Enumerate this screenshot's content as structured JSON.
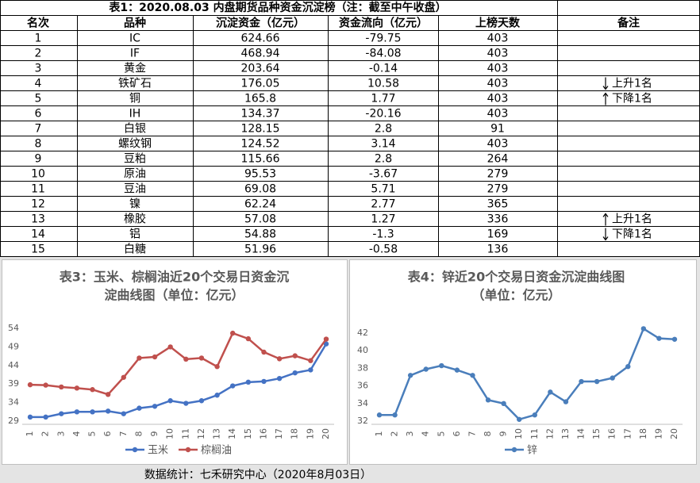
{
  "table": {
    "title": "表1：2020.08.03 内盘期货品种资金沉淀榜（注：截至中午收盘）",
    "columns": [
      "名次",
      "品种",
      "沉淀资金（亿元）",
      "资金流向（亿元）",
      "上榜天数",
      "备注"
    ],
    "rows": [
      [
        "1",
        "IC",
        "624.66",
        "-79.75",
        "403",
        null
      ],
      [
        "2",
        "IF",
        "468.94",
        "-84.08",
        "403",
        null
      ],
      [
        "3",
        "黄金",
        "203.64",
        "-0.14",
        "403",
        null
      ],
      [
        "4",
        "铁矿石",
        "176.05",
        "10.58",
        "403",
        "上升1名"
      ],
      [
        "5",
        "铜",
        "165.8",
        "1.77",
        "403",
        "下降1名"
      ],
      [
        "6",
        "IH",
        "134.37",
        "-20.16",
        "403",
        null
      ],
      [
        "7",
        "白银",
        "128.15",
        "2.8",
        "91",
        null
      ],
      [
        "8",
        "螺纹钢",
        "124.52",
        "3.14",
        "403",
        null
      ],
      [
        "9",
        "豆粕",
        "115.66",
        "2.8",
        "264",
        null
      ],
      [
        "10",
        "原油",
        "95.53",
        "-3.67",
        "279",
        null
      ],
      [
        "11",
        "豆油",
        "69.08",
        "5.71",
        "279",
        null
      ],
      [
        "12",
        "镍",
        "62.24",
        "2.77",
        "365",
        null
      ],
      [
        "13",
        "橡胶",
        "57.08",
        "1.27",
        "336",
        "上升1名"
      ],
      [
        "14",
        "铝",
        "54.88",
        "-1.3",
        "169",
        "下降1名"
      ],
      [
        "15",
        "白糖",
        "51.96",
        "-0.58",
        "136",
        null
      ]
    ]
  },
  "chart_data": [
    {
      "type": "line",
      "title": [
        "表3：玉米、棕榈油近20个交易日资金沉",
        "淀曲线图（单位：亿元）"
      ],
      "x": [
        1,
        2,
        3,
        4,
        5,
        6,
        7,
        8,
        9,
        10,
        11,
        12,
        13,
        14,
        15,
        16,
        17,
        18,
        19,
        20
      ],
      "xlim": [
        1,
        20
      ],
      "ylim": [
        29,
        54
      ],
      "yticks": [
        29,
        34,
        39,
        44,
        49,
        54
      ],
      "grid": false,
      "series": [
        {
          "name": "玉米",
          "color": "#4472c4",
          "values": [
            30.1,
            30.1,
            31.0,
            31.5,
            31.5,
            31.7,
            31.0,
            32.5,
            33.0,
            34.5,
            33.8,
            34.5,
            36.0,
            38.5,
            39.5,
            39.7,
            40.5,
            42.0,
            42.8,
            49.8
          ]
        },
        {
          "name": "棕榈油",
          "color": "#c0504d",
          "values": [
            38.8,
            38.7,
            38.2,
            37.9,
            37.5,
            36.2,
            40.8,
            46.0,
            46.3,
            49.0,
            45.7,
            46.0,
            43.7,
            52.7,
            51.2,
            47.6,
            45.8,
            46.6,
            45.3,
            51.1
          ]
        }
      ]
    },
    {
      "type": "line",
      "title": [
        "表4：锌近20个交易日资金沉淀曲线图",
        "（单位：亿元）"
      ],
      "x": [
        1,
        2,
        3,
        4,
        5,
        6,
        7,
        8,
        9,
        10,
        11,
        12,
        13,
        14,
        15,
        16,
        17,
        18,
        19,
        20
      ],
      "xlim": [
        1,
        20
      ],
      "ylim": [
        32,
        42
      ],
      "yticks": [
        32,
        34,
        36,
        38,
        40,
        42
      ],
      "grid": false,
      "series": [
        {
          "name": "锌",
          "color": "#4a7ebb",
          "values": [
            32.7,
            32.7,
            37.2,
            37.9,
            38.3,
            37.8,
            37.2,
            34.4,
            34.0,
            32.2,
            32.7,
            35.3,
            34.2,
            36.5,
            36.5,
            36.9,
            38.2,
            42.5,
            41.4,
            41.3
          ]
        }
      ]
    }
  ],
  "footer": "数据统计：七禾研究中心（2020年8月03日）"
}
